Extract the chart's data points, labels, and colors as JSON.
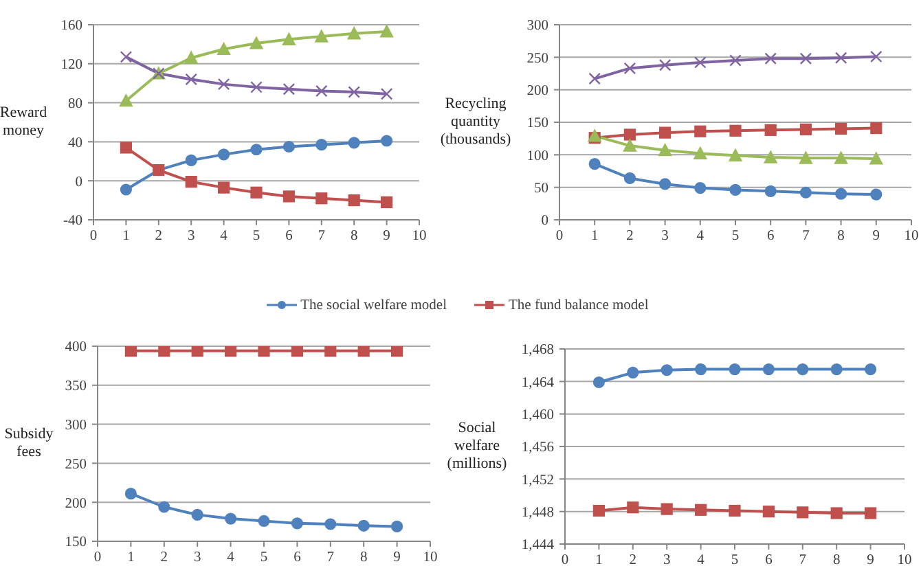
{
  "chart_data": [
    {
      "type": "line",
      "ylabel": "Reward money",
      "x": [
        1,
        2,
        3,
        4,
        5,
        6,
        7,
        8,
        9
      ],
      "xlim": [
        0,
        10
      ],
      "xticks": [
        0,
        1,
        2,
        3,
        4,
        5,
        6,
        7,
        8,
        9,
        10
      ],
      "ylim": [
        -40,
        160
      ],
      "yticks": [
        -40,
        0,
        40,
        80,
        120,
        160
      ],
      "grid": "y",
      "series": [
        {
          "color": "#4f81bd",
          "marker": "circle",
          "values": [
            -9,
            11,
            21,
            27,
            32,
            35,
            37,
            39,
            41
          ]
        },
        {
          "color": "#c0504d",
          "marker": "square",
          "values": [
            34,
            11,
            -1,
            -7,
            -12,
            -16,
            -18,
            -20,
            -22
          ]
        },
        {
          "color": "#9bbb59",
          "marker": "triangle",
          "values": [
            82,
            110,
            126,
            135,
            141,
            145,
            148,
            151,
            153
          ]
        },
        {
          "color": "#8064a2",
          "marker": "cross",
          "values": [
            127,
            110,
            104,
            99,
            96,
            94,
            92,
            91,
            89
          ]
        }
      ]
    },
    {
      "type": "line",
      "ylabel": "Recycling quantity (thousands)",
      "x": [
        1,
        2,
        3,
        4,
        5,
        6,
        7,
        8,
        9
      ],
      "xlim": [
        0,
        10
      ],
      "xticks": [
        0,
        1,
        2,
        3,
        4,
        5,
        6,
        7,
        8,
        9,
        10
      ],
      "ylim": [
        0,
        300
      ],
      "yticks": [
        0,
        50,
        100,
        150,
        200,
        250,
        300
      ],
      "grid": "y",
      "series": [
        {
          "color": "#4f81bd",
          "marker": "circle",
          "values": [
            86,
            64,
            55,
            49,
            46,
            44,
            42,
            40,
            39
          ]
        },
        {
          "color": "#c0504d",
          "marker": "square",
          "values": [
            126,
            131,
            134,
            136,
            137,
            138,
            139,
            140,
            141
          ]
        },
        {
          "color": "#9bbb59",
          "marker": "triangle",
          "values": [
            129,
            114,
            107,
            102,
            99,
            96,
            95,
            95,
            94
          ]
        },
        {
          "color": "#8064a2",
          "marker": "cross",
          "values": [
            217,
            233,
            238,
            242,
            245,
            248,
            248,
            249,
            251
          ]
        }
      ]
    },
    {
      "type": "line",
      "ylabel": "Subsidy fees",
      "x": [
        1,
        2,
        3,
        4,
        5,
        6,
        7,
        8,
        9
      ],
      "xlim": [
        0,
        10
      ],
      "xticks": [
        0,
        1,
        2,
        3,
        4,
        5,
        6,
        7,
        8,
        9,
        10
      ],
      "ylim": [
        150,
        400
      ],
      "yticks": [
        150,
        200,
        250,
        300,
        350,
        400
      ],
      "grid": "y",
      "legend": "top right",
      "series": [
        {
          "name": "The social welfare model",
          "color": "#4f81bd",
          "marker": "circle",
          "values": [
            211,
            194,
            184,
            179,
            176,
            173,
            172,
            170,
            169
          ]
        },
        {
          "color": "#c0504d",
          "marker": "square",
          "values": [
            394,
            394,
            394,
            394,
            394,
            394,
            394,
            394,
            394
          ]
        }
      ]
    },
    {
      "type": "line",
      "ylabel": "Social welfare (millions)",
      "x": [
        1,
        2,
        3,
        4,
        5,
        6,
        7,
        8,
        9
      ],
      "xlim": [
        0,
        10
      ],
      "xticks": [
        0,
        1,
        2,
        3,
        4,
        5,
        6,
        7,
        8,
        9,
        10
      ],
      "ylim": [
        1444,
        1468
      ],
      "yticks": [
        {
          "value": 1444,
          "label": "1,444"
        },
        {
          "value": 1448,
          "label": "1,448"
        },
        {
          "value": 1452,
          "label": "1,452"
        },
        {
          "value": 1456,
          "label": "1,456"
        },
        {
          "value": 1460,
          "label": "1,460"
        },
        {
          "value": 1464,
          "label": "1,464"
        },
        {
          "value": 1468,
          "label": "1,468"
        }
      ],
      "grid": "y",
      "legend": "top left",
      "series": [
        {
          "color": "#4f81bd",
          "marker": "circle",
          "values": [
            1463.9,
            1465.1,
            1465.4,
            1465.5,
            1465.5,
            1465.5,
            1465.5,
            1465.5,
            1465.5
          ]
        },
        {
          "name": "The fund balance model",
          "color": "#c0504d",
          "marker": "square",
          "values": [
            1448.1,
            1448.5,
            1448.3,
            1448.2,
            1448.1,
            1448.0,
            1447.9,
            1447.8,
            1447.8
          ]
        }
      ]
    }
  ]
}
